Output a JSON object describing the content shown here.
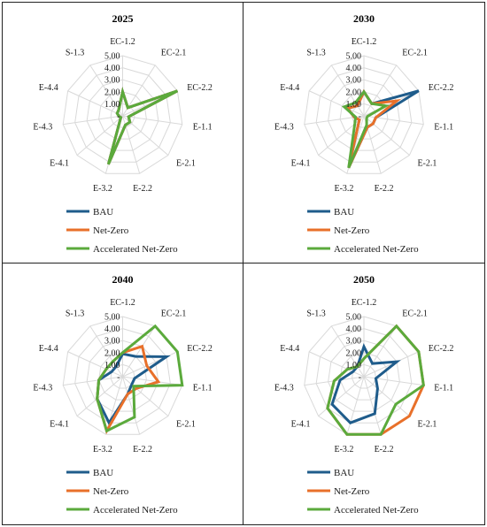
{
  "colors": {
    "bau": "#1F5C8B",
    "net_zero": "#E8702A",
    "accelerated": "#5BAA3C",
    "grid": "#d9d9d9"
  },
  "chart_data": [
    {
      "type": "radar",
      "title": "2025",
      "axes": [
        "EC-1.2",
        "EC-2.1",
        "EC-2.2",
        "E-1.1",
        "E-2.1",
        "E-2.2",
        "E-3.2",
        "E-4.1",
        "E-4.3",
        "E-4.4",
        "S-1.3"
      ],
      "tick_labels": [
        "-",
        "1.00",
        "2.00",
        "3.00",
        "4.00",
        "5.00"
      ],
      "rlim": [
        0,
        5
      ],
      "legend": "bottom",
      "series": [
        {
          "name": "BAU",
          "values": [
            2.0,
            0.8,
            5.0,
            0.5,
            0.8,
            0.8,
            4.2,
            0.2,
            0.3,
            0.5,
            0.6
          ]
        },
        {
          "name": "Net-Zero",
          "values": [
            2.0,
            0.8,
            5.0,
            0.5,
            0.8,
            0.8,
            4.2,
            0.2,
            0.3,
            0.5,
            0.6
          ]
        },
        {
          "name": "Accelerated Net-Zero",
          "values": [
            2.0,
            0.8,
            5.0,
            0.5,
            0.8,
            0.8,
            4.2,
            0.2,
            0.3,
            0.5,
            0.6
          ]
        }
      ]
    },
    {
      "type": "radar",
      "title": "2030",
      "axes": [
        "EC-1.2",
        "EC-2.1",
        "EC-2.2",
        "E-1.1",
        "E-2.1",
        "E-2.2",
        "E-3.2",
        "E-4.1",
        "E-4.3",
        "E-4.4",
        "S-1.3"
      ],
      "tick_labels": [
        "-",
        "1.00",
        "2.00",
        "3.00",
        "4.00",
        "5.00"
      ],
      "rlim": [
        0,
        5
      ],
      "legend": "bottom",
      "series": [
        {
          "name": "BAU",
          "values": [
            2.0,
            1.2,
            5.0,
            1.0,
            1.0,
            1.0,
            4.5,
            0.5,
            0.8,
            1.5,
            1.0
          ]
        },
        {
          "name": "Net-Zero",
          "values": [
            2.0,
            1.2,
            3.0,
            1.0,
            1.0,
            1.0,
            4.5,
            0.5,
            0.8,
            1.5,
            1.0
          ]
        },
        {
          "name": "Accelerated Net-Zero",
          "values": [
            2.0,
            1.2,
            2.0,
            0.3,
            0.3,
            0.8,
            4.5,
            1.0,
            0.7,
            1.8,
            1.3
          ]
        }
      ]
    },
    {
      "type": "radar",
      "title": "2040",
      "axes": [
        "EC-1.2",
        "EC-2.1",
        "EC-2.2",
        "E-1.1",
        "E-2.1",
        "E-2.2",
        "E-3.2",
        "E-4.1",
        "E-4.3",
        "E-4.4",
        "S-1.3"
      ],
      "tick_labels": [
        "-",
        "1.00",
        "2.00",
        "3.00",
        "4.00",
        "5.00"
      ],
      "rlim": [
        0,
        5
      ],
      "legend": "bottom",
      "series": [
        {
          "name": "BAU",
          "values": [
            1.9,
            2.0,
            4.0,
            1.0,
            1.0,
            1.5,
            4.0,
            2.8,
            2.0,
            1.0,
            1.0
          ]
        },
        {
          "name": "Net-Zero",
          "values": [
            2.0,
            3.0,
            2.2,
            3.0,
            1.5,
            1.5,
            4.7,
            2.8,
            2.0,
            1.5,
            1.5
          ]
        },
        {
          "name": "Accelerated Net-Zero",
          "values": [
            2.0,
            5.0,
            5.0,
            5.0,
            1.2,
            3.5,
            4.7,
            2.8,
            2.0,
            1.5,
            1.5
          ]
        }
      ]
    },
    {
      "type": "radar",
      "title": "2050",
      "axes": [
        "EC-1.2",
        "EC-2.1",
        "EC-2.2",
        "E-1.1",
        "E-2.1",
        "E-2.2",
        "E-3.2",
        "E-4.1",
        "E-4.3",
        "E-4.4",
        "S-1.3"
      ],
      "tick_labels": [
        "-",
        "1.00",
        "2.00",
        "3.00",
        "4.00",
        "5.00"
      ],
      "rlim": [
        0,
        5
      ],
      "legend": "bottom",
      "series": [
        {
          "name": "BAU",
          "values": [
            2.5,
            1.3,
            3.0,
            1.0,
            1.5,
            3.2,
            4.0,
            3.5,
            2.0,
            1.0,
            1.0
          ]
        },
        {
          "name": "Net-Zero",
          "values": [
            1.5,
            5.0,
            5.0,
            5.0,
            5.0,
            5.0,
            5.0,
            4.0,
            2.5,
            1.5,
            1.0
          ]
        },
        {
          "name": "Accelerated Net-Zero",
          "values": [
            1.5,
            5.0,
            5.0,
            5.0,
            3.5,
            5.0,
            5.0,
            4.0,
            2.5,
            1.5,
            1.0
          ]
        }
      ]
    }
  ]
}
